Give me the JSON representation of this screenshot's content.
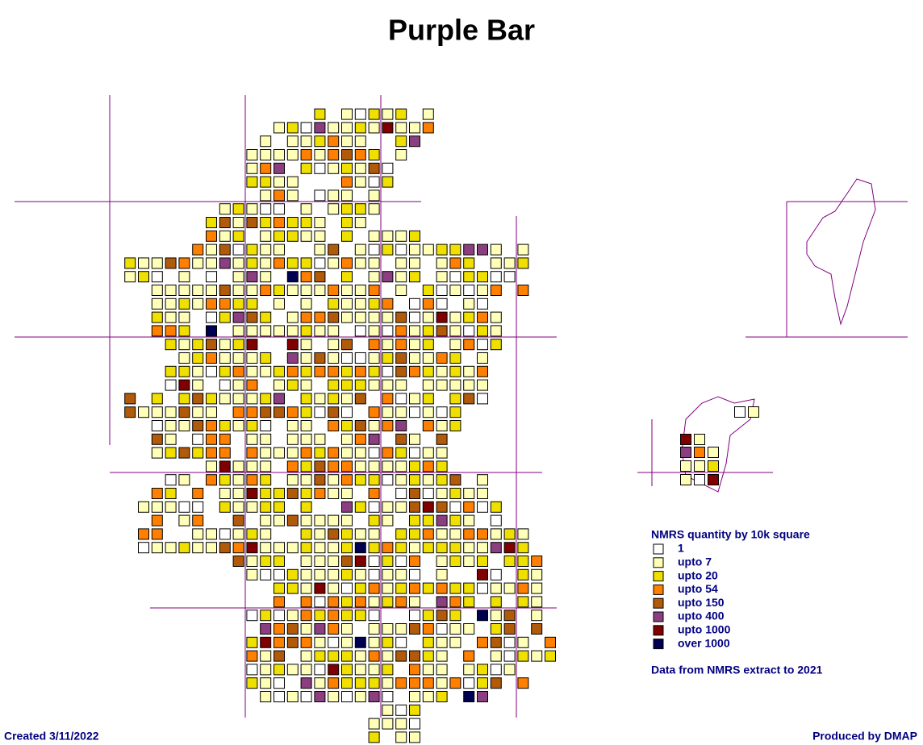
{
  "title": "Purple Bar",
  "legend": {
    "title": "NMRS quantity by 10k square",
    "items": [
      {
        "label": "1",
        "color": "#ffffff"
      },
      {
        "label": "upto 7",
        "color": "#ffffb8"
      },
      {
        "label": "upto 20",
        "color": "#f0e000"
      },
      {
        "label": "upto 54",
        "color": "#ff8000"
      },
      {
        "label": "upto 150",
        "color": "#b05a0a"
      },
      {
        "label": "upto 400",
        "color": "#8b3e80"
      },
      {
        "label": "upto 1000",
        "color": "#800000"
      },
      {
        "label": "over 1000",
        "color": "#000050"
      }
    ]
  },
  "source_note": "Data from NMRS extract to 2021",
  "footer": {
    "created": "Created 3/11/2022",
    "produced_by": "Produced by DMAP"
  }
}
